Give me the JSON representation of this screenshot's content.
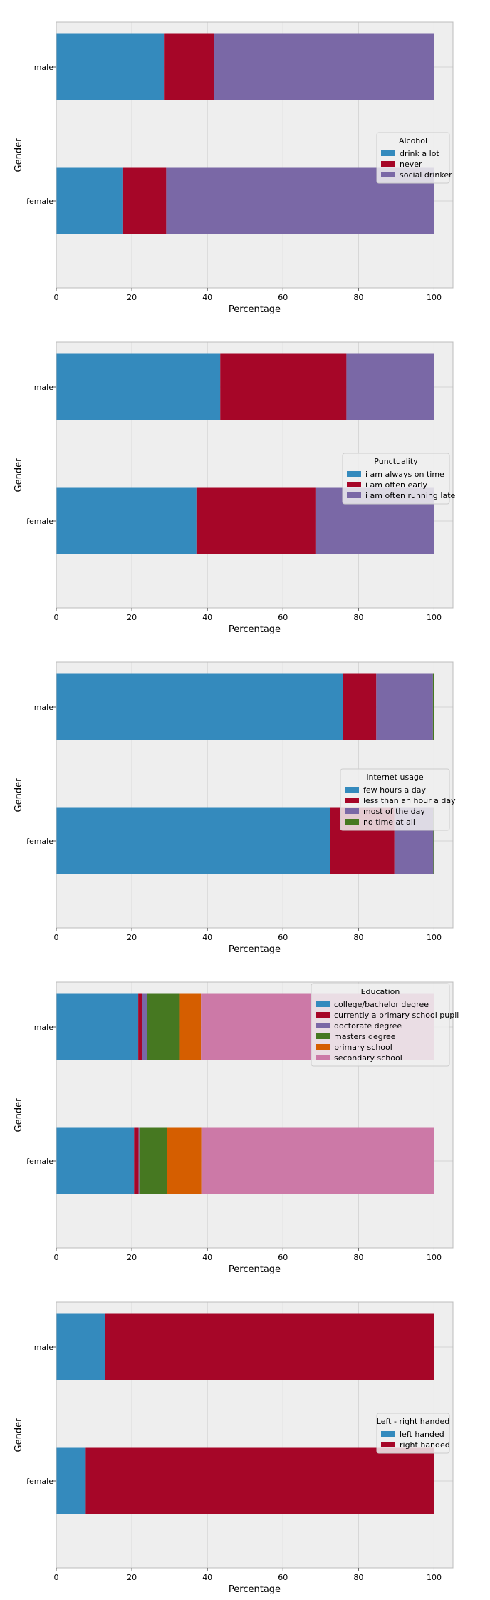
{
  "chart_data": [
    {
      "type": "bar",
      "orientation": "horizontal",
      "stacked": true,
      "categories": [
        "male",
        "female"
      ],
      "xlabel": "Percentage",
      "ylabel": "Gender",
      "xlim": [
        0,
        105
      ],
      "xticks": [
        "0",
        "20",
        "40",
        "60",
        "80",
        "100"
      ],
      "grid": true,
      "legend": {
        "title": "Alcohol",
        "placement": "center-right"
      },
      "series": [
        {
          "name": "drink a lot",
          "color": "#348ABD",
          "values": [
            28.5,
            17.7
          ]
        },
        {
          "name": "never",
          "color": "#A60628",
          "values": [
            13.3,
            11.4
          ]
        },
        {
          "name": "social drinker",
          "color": "#7A68A6",
          "values": [
            58.2,
            70.9
          ]
        }
      ]
    },
    {
      "type": "bar",
      "orientation": "horizontal",
      "stacked": true,
      "categories": [
        "male",
        "female"
      ],
      "xlabel": "Percentage",
      "ylabel": "Gender",
      "xlim": [
        0,
        105
      ],
      "xticks": [
        "0",
        "20",
        "40",
        "60",
        "80",
        "100"
      ],
      "grid": true,
      "legend": {
        "title": "Punctuality",
        "placement": "center-right"
      },
      "series": [
        {
          "name": "i am always on time",
          "color": "#348ABD",
          "values": [
            43.4,
            37.1
          ]
        },
        {
          "name": "i am often early",
          "color": "#A60628",
          "values": [
            33.4,
            31.5
          ]
        },
        {
          "name": "i am often running late",
          "color": "#7A68A6",
          "values": [
            23.2,
            31.4
          ]
        }
      ]
    },
    {
      "type": "bar",
      "orientation": "horizontal",
      "stacked": true,
      "categories": [
        "male",
        "female"
      ],
      "xlabel": "Percentage",
      "ylabel": "Gender",
      "xlim": [
        0,
        105
      ],
      "xticks": [
        "0",
        "20",
        "40",
        "60",
        "80",
        "100"
      ],
      "grid": true,
      "legend": {
        "title": "Internet usage",
        "placement": "center-right"
      },
      "series": [
        {
          "name": "few hours a day",
          "color": "#348ABD",
          "values": [
            75.8,
            72.4
          ]
        },
        {
          "name": "less than an hour a day",
          "color": "#A60628",
          "values": [
            8.9,
            17.1
          ]
        },
        {
          "name": "most of the day",
          "color": "#7A68A6",
          "values": [
            15.0,
            10.3
          ]
        },
        {
          "name": "no time at all",
          "color": "#467821",
          "values": [
            0.3,
            0.2
          ]
        }
      ]
    },
    {
      "type": "bar",
      "orientation": "horizontal",
      "stacked": true,
      "categories": [
        "male",
        "female"
      ],
      "xlabel": "Percentage",
      "ylabel": "Gender",
      "xlim": [
        0,
        105
      ],
      "xticks": [
        "0",
        "20",
        "40",
        "60",
        "80",
        "100"
      ],
      "grid": true,
      "legend": {
        "title": "Education",
        "placement": "upper-right"
      },
      "series": [
        {
          "name": "college/bachelor degree",
          "color": "#348ABD",
          "values": [
            21.7,
            20.6
          ]
        },
        {
          "name": "currently a primary school pupil",
          "color": "#A60628",
          "values": [
            1.1,
            1.2
          ]
        },
        {
          "name": "doctorate degree",
          "color": "#7A68A6",
          "values": [
            1.3,
            0.2
          ]
        },
        {
          "name": "masters degree",
          "color": "#467821",
          "values": [
            8.6,
            7.4
          ]
        },
        {
          "name": "primary school",
          "color": "#D55E00",
          "values": [
            5.6,
            9.0
          ]
        },
        {
          "name": "secondary school",
          "color": "#CC79A7",
          "values": [
            61.7,
            61.6
          ]
        }
      ]
    },
    {
      "type": "bar",
      "orientation": "horizontal",
      "stacked": true,
      "categories": [
        "male",
        "female"
      ],
      "xlabel": "Percentage",
      "ylabel": "Gender",
      "xlim": [
        0,
        105
      ],
      "xticks": [
        "0",
        "20",
        "40",
        "60",
        "80",
        "100"
      ],
      "grid": true,
      "legend": {
        "title": "Left - right handed",
        "placement": "center-right"
      },
      "series": [
        {
          "name": "left handed",
          "color": "#348ABD",
          "values": [
            12.9,
            7.8
          ]
        },
        {
          "name": "right handed",
          "color": "#A60628",
          "values": [
            87.1,
            92.2
          ]
        }
      ]
    }
  ]
}
